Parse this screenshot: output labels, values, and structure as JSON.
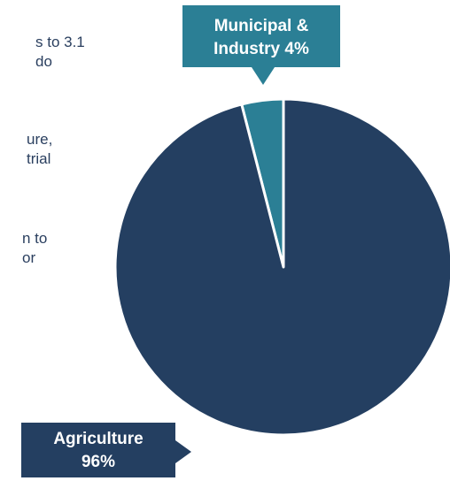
{
  "left_fragments": [
    {
      "lines": [
        "s to 3.1",
        "do"
      ]
    },
    {
      "lines": [
        "ure,",
        "trial"
      ]
    },
    {
      "lines": [
        "n to",
        "or"
      ]
    }
  ],
  "chart_data": {
    "type": "pie",
    "title": "",
    "slices": [
      {
        "name": "Agriculture",
        "value": 96,
        "label_line1": "Agriculture",
        "label_line2": "96%",
        "color": "#243f61"
      },
      {
        "name": "Municipal & Industry",
        "value": 4,
        "label_line1": "Municipal &",
        "label_line2": "Industry 4%",
        "color": "#2b7f95"
      }
    ],
    "legend": "none"
  },
  "colors": {
    "agriculture": "#243f61",
    "municipal": "#2b7f95",
    "text": "#2a3f5f"
  }
}
